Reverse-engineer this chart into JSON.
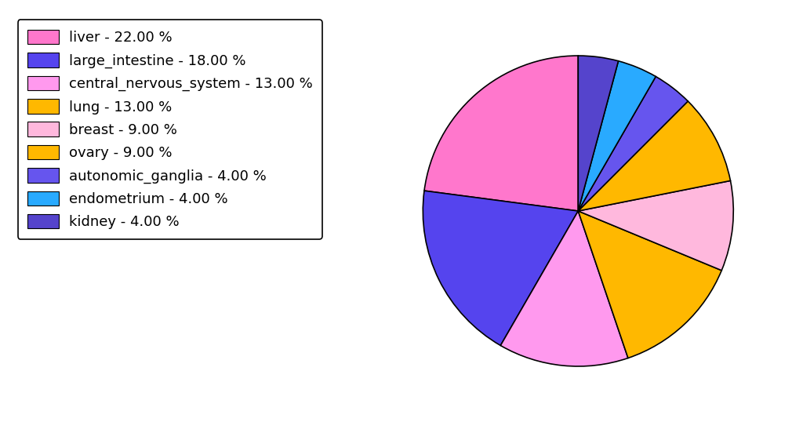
{
  "labels": [
    "liver",
    "large_intestine",
    "central_nervous_system",
    "lung",
    "breast",
    "ovary",
    "autonomic_ganglia",
    "endometrium",
    "kidney"
  ],
  "values": [
    22,
    18,
    13,
    13,
    9,
    9,
    4,
    4,
    4
  ],
  "colors": [
    "#FF77CC",
    "#5544EE",
    "#FF99EE",
    "#FFB800",
    "#FFB8DD",
    "#FFB800",
    "#6655EE",
    "#29AAFF",
    "#5544CC"
  ],
  "legend_labels": [
    "liver - 22.00 %",
    "large_intestine - 18.00 %",
    "central_nervous_system - 13.00 %",
    "lung - 13.00 %",
    "breast - 9.00 %",
    "ovary - 9.00 %",
    "autonomic_ganglia - 4.00 %",
    "endometrium - 4.00 %",
    "kidney - 4.00 %"
  ],
  "background_color": "#FFFFFF",
  "startangle": 90,
  "legend_fontsize": 13
}
